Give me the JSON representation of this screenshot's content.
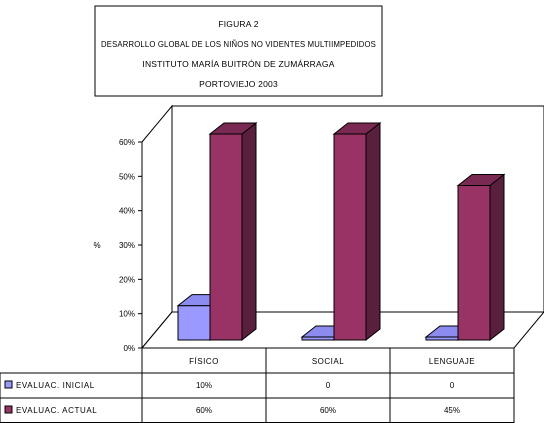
{
  "chart_data": {
    "type": "bar",
    "title_lines": [
      "FIGURA 2",
      "DESARROLLO GLOBAL DE LOS NIÑOS NO VIDENTES MULTIIMPEDIDOS",
      "INSTITUTO MARÍA BUITRÓN DE ZUMÁRRAGA",
      "PORTOVIEJO 2003"
    ],
    "ylabel": "%",
    "ylim": [
      0,
      60
    ],
    "y_ticks": [
      0,
      10,
      20,
      30,
      40,
      50,
      60
    ],
    "y_tick_labels": [
      "0%",
      "10%",
      "20%",
      "30%",
      "40%",
      "50%",
      "60%"
    ],
    "categories": [
      "FÍSICO",
      "SOCIAL",
      "LENGUAJE"
    ],
    "series": [
      {
        "name": "EVALUAC. INICIAL",
        "values": [
          10,
          0,
          0
        ],
        "table_labels": [
          "10%",
          "0",
          "0"
        ],
        "color": "#9999ff",
        "side_color": "#6b6bb3",
        "top_color": "#8c8cf0"
      },
      {
        "name": "EVALUAC. ACTUAL",
        "values": [
          60,
          60,
          45
        ],
        "table_labels": [
          "60%",
          "60%",
          "45%"
        ],
        "color": "#993366",
        "side_color": "#5a1f3c",
        "top_color": "#7a2952"
      }
    ],
    "grid": false,
    "legend": "data-table"
  }
}
